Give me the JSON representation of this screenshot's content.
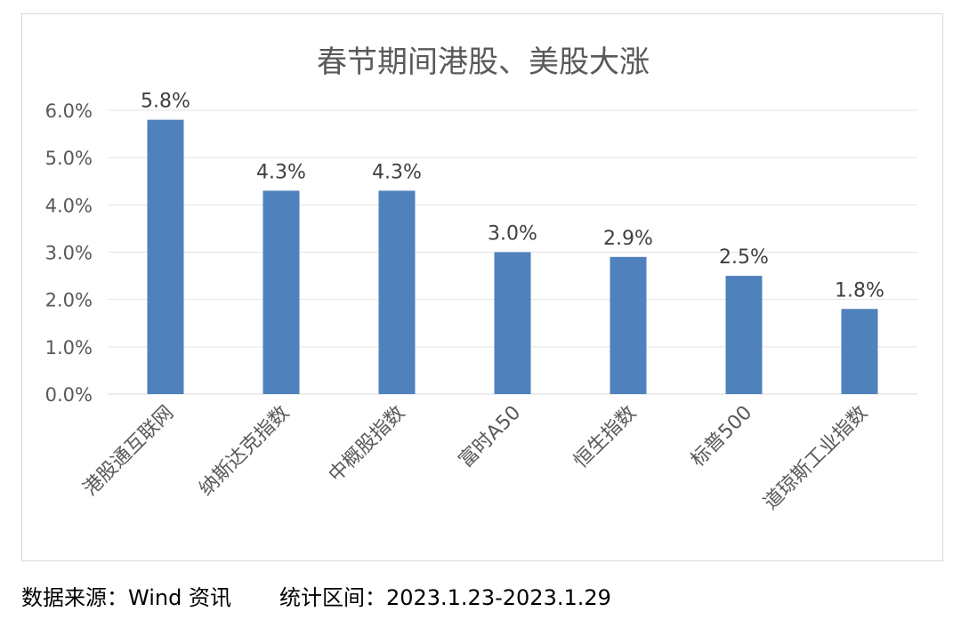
{
  "chart_data": {
    "type": "bar",
    "title": "春节期间港股、美股大涨",
    "categories": [
      "港股通互联网",
      "纳斯达克指数",
      "中概股指数",
      "富时A50",
      "恒生指数",
      "标普500",
      "道琼斯工业指数"
    ],
    "values": [
      5.8,
      4.3,
      4.3,
      3.0,
      2.9,
      2.5,
      1.8
    ],
    "data_labels": [
      "5.8%",
      "4.3%",
      "4.3%",
      "3.0%",
      "2.9%",
      "2.5%",
      "1.8%"
    ],
    "yticks": [
      "0.0%",
      "1.0%",
      "2.0%",
      "3.0%",
      "4.0%",
      "5.0%",
      "6.0%"
    ],
    "ylim": [
      0,
      6
    ],
    "grid": true,
    "bar_color": "#4f81bd"
  },
  "footer": {
    "source": "数据来源：Wind 资讯",
    "period": "统计区间：2023.1.23-2023.1.29"
  }
}
